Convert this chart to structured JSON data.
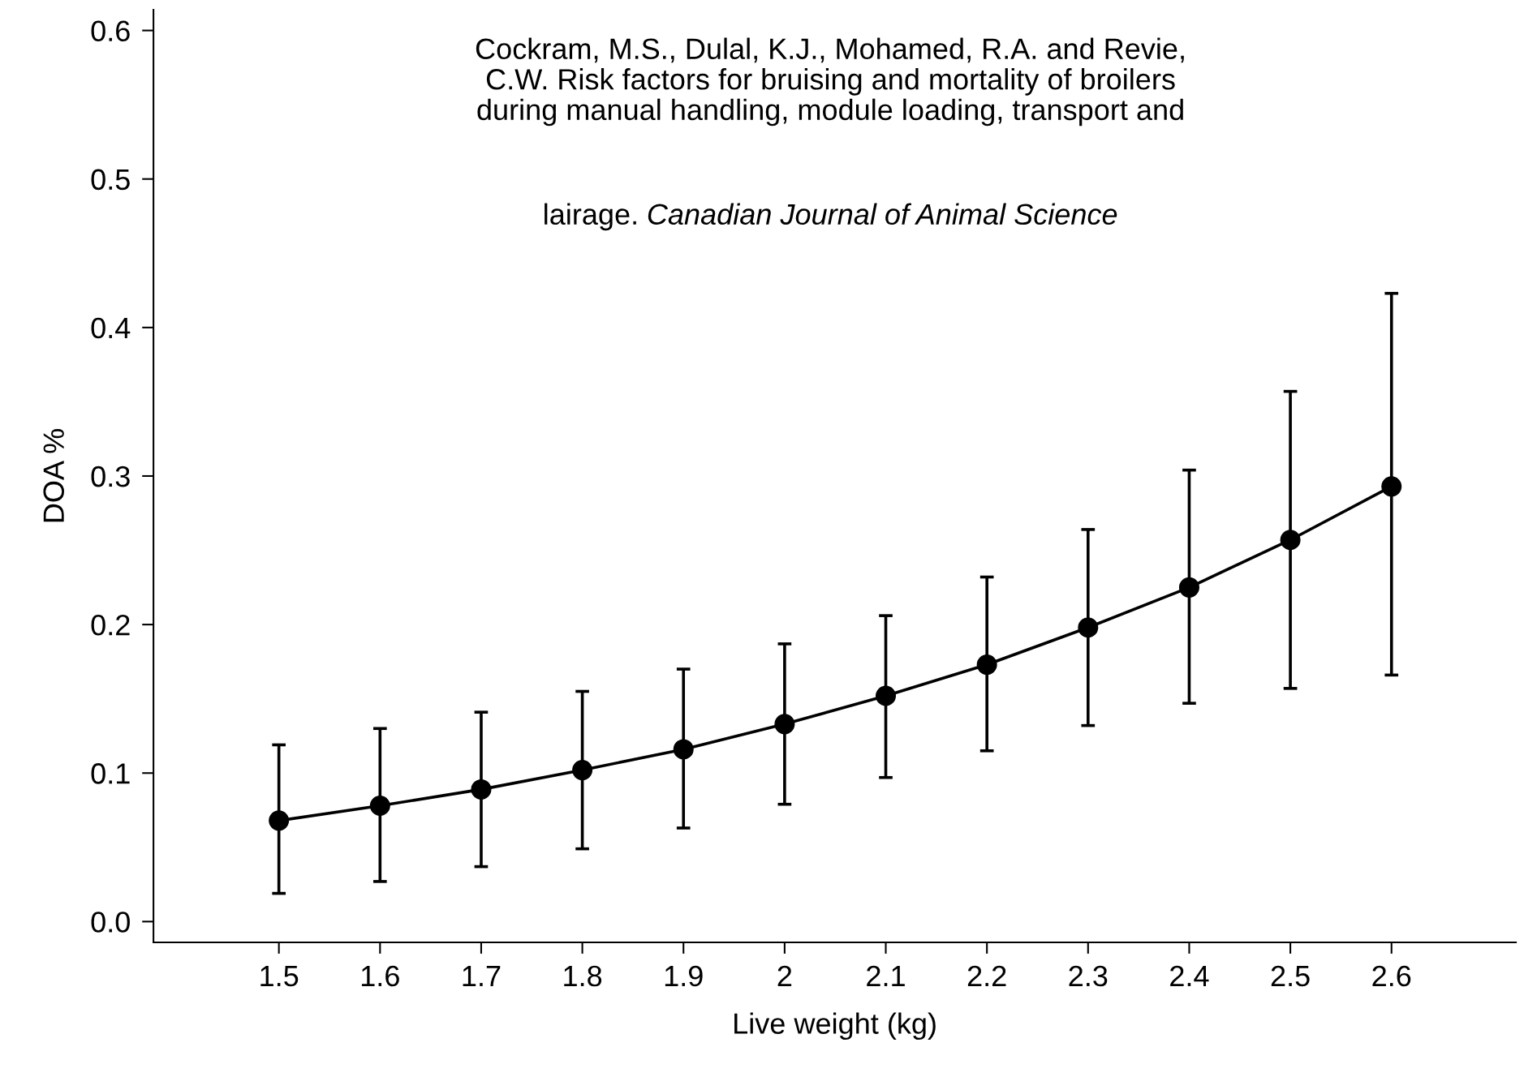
{
  "chart_data": {
    "type": "line",
    "xlabel": "Live weight (kg)",
    "ylabel": "DOA %",
    "x": [
      1.5,
      1.6,
      1.7,
      1.8,
      1.9,
      2.0,
      2.1,
      2.2,
      2.3,
      2.4,
      2.5,
      2.6
    ],
    "series": [
      {
        "color": "#000000",
        "values": [
          0.068,
          0.078,
          0.089,
          0.102,
          0.116,
          0.133,
          0.152,
          0.173,
          0.198,
          0.225,
          0.257,
          0.293
        ],
        "errors": [
          [
            0.019,
            0.119
          ],
          [
            0.027,
            0.13
          ],
          [
            0.037,
            0.141
          ],
          [
            0.049,
            0.155
          ],
          [
            0.063,
            0.17
          ],
          [
            0.079,
            0.187
          ],
          [
            0.097,
            0.206
          ],
          [
            0.115,
            0.232
          ],
          [
            0.132,
            0.264
          ],
          [
            0.147,
            0.304
          ],
          [
            0.157,
            0.357
          ],
          [
            0.166,
            0.423
          ]
        ]
      }
    ],
    "xlim": [
      1.376,
      2.723
    ],
    "xticks": [
      1.5,
      1.6,
      1.7,
      1.8,
      1.9,
      2,
      2.1,
      2.2,
      2.3,
      2.4,
      2.5,
      2.6
    ],
    "ylim": [
      -0.014,
      0.614
    ],
    "yticks": [
      {
        "value": 0,
        "label": "0.0"
      },
      0.1,
      0.2,
      0.3,
      0.4,
      0.5,
      0.6
    ],
    "marker": "circle",
    "line_style": "solid",
    "grid": false,
    "legend": false,
    "annotations": [
      "Cockram, M.S., Dulal, K.J., Mohamed, R.A. and Revie,\nC.W. Risk factors for bruising and mortality of broilers\nduring manual handling, module loading, transport and\nlairage.",
      "Canadian Journal of Animal Science"
    ]
  }
}
